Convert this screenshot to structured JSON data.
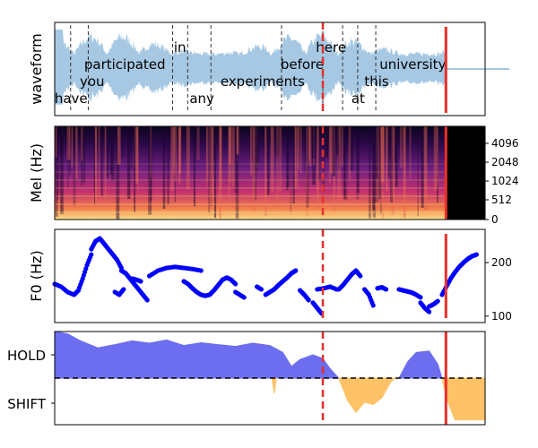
{
  "colors": {
    "waveform": "#a6c8e3",
    "f0": "#0000ff",
    "hold": "#6d6df0",
    "shift": "#ffc266",
    "vad_red": "#e8302a",
    "dashed": "#333333"
  },
  "chart_data": [
    {
      "type": "area",
      "panel": "waveform",
      "ylabel": "waveform",
      "xlim": [
        0,
        1
      ],
      "words": [
        {
          "text": "have",
          "x": 0.038,
          "level": "low"
        },
        {
          "text": "you",
          "x": 0.087,
          "level": "mid"
        },
        {
          "text": "participated",
          "x": 0.163,
          "level": "high"
        },
        {
          "text": "in",
          "x": 0.291,
          "level": "top"
        },
        {
          "text": "any",
          "x": 0.342,
          "level": "low"
        },
        {
          "text": "experiments",
          "x": 0.483,
          "level": "mid"
        },
        {
          "text": "before",
          "x": 0.575,
          "level": "high"
        },
        {
          "text": "here",
          "x": 0.642,
          "level": "top"
        },
        {
          "text": "at",
          "x": 0.705,
          "level": "low"
        },
        {
          "text": "this",
          "x": 0.748,
          "level": "mid"
        },
        {
          "text": "university",
          "x": 0.832,
          "level": "high"
        }
      ],
      "word_boundaries": [
        0.037,
        0.078,
        0.274,
        0.309,
        0.363,
        0.527,
        0.623,
        0.669,
        0.704,
        0.746
      ],
      "vad_dashed_x": 0.623,
      "vad_solid_x": 0.909,
      "signal_end_x": 0.909
    },
    {
      "type": "heatmap",
      "panel": "mel",
      "ylabel": "Mel (Hz)",
      "yticks": [
        "0",
        "512",
        "1024",
        "2048",
        "4096"
      ],
      "vad_dashed_x": 0.623,
      "vad_solid_x": 0.909
    },
    {
      "type": "scatter",
      "panel": "f0",
      "ylabel": "F0 (Hz)",
      "ylim": [
        88,
        262
      ],
      "yticks": [
        "100",
        "200"
      ],
      "segments": [
        {
          "x": [
            0.0,
            0.015,
            0.03,
            0.045,
            0.055,
            0.065,
            0.075,
            0.085
          ],
          "y": [
            160,
            155,
            145,
            140,
            148,
            170,
            195,
            215
          ]
        },
        {
          "x": [
            0.085,
            0.095,
            0.105,
            0.115,
            0.125,
            0.135,
            0.145,
            0.155
          ],
          "y": [
            225,
            240,
            245,
            235,
            225,
            215,
            205,
            190
          ]
        },
        {
          "x": [
            0.155,
            0.165,
            0.175,
            0.185,
            0.195,
            0.205,
            0.215
          ],
          "y": [
            185,
            180,
            170,
            160,
            150,
            140,
            130
          ]
        },
        {
          "x": [
            0.14,
            0.15,
            0.16
          ],
          "y": [
            145,
            140,
            150
          ]
        },
        {
          "x": [
            0.18,
            0.19,
            0.2
          ],
          "y": [
            170,
            168,
            165
          ]
        },
        {
          "x": [
            0.22,
            0.24,
            0.26,
            0.28,
            0.3,
            0.32,
            0.34
          ],
          "y": [
            175,
            185,
            190,
            192,
            190,
            188,
            185
          ]
        },
        {
          "x": [
            0.3,
            0.31,
            0.32,
            0.33,
            0.34,
            0.35,
            0.36,
            0.37,
            0.38,
            0.39,
            0.4,
            0.41,
            0.42
          ],
          "y": [
            165,
            160,
            152,
            145,
            140,
            138,
            140,
            148,
            158,
            168,
            172,
            168,
            160
          ]
        },
        {
          "x": [
            0.42,
            0.43,
            0.44
          ],
          "y": [
            145,
            140,
            135
          ]
        },
        {
          "x": [
            0.47,
            0.48
          ],
          "y": [
            155,
            150
          ]
        },
        {
          "x": [
            0.49,
            0.5,
            0.51,
            0.52,
            0.53,
            0.54,
            0.55,
            0.56
          ],
          "y": [
            140,
            145,
            150,
            158,
            165,
            172,
            180,
            185
          ]
        },
        {
          "x": [
            0.57,
            0.58,
            0.59
          ],
          "y": [
            148,
            140,
            130
          ]
        },
        {
          "x": [
            0.6,
            0.61,
            0.62
          ],
          "y": [
            125,
            115,
            105
          ]
        },
        {
          "x": [
            0.61,
            0.625,
            0.64,
            0.655
          ],
          "y": [
            150,
            152,
            155,
            150
          ]
        },
        {
          "x": [
            0.66,
            0.67,
            0.68,
            0.69,
            0.7,
            0.71
          ],
          "y": [
            150,
            158,
            168,
            178,
            185,
            175
          ]
        },
        {
          "x": [
            0.72,
            0.73,
            0.74
          ],
          "y": [
            150,
            140,
            120
          ]
        },
        {
          "x": [
            0.75,
            0.76,
            0.77
          ],
          "y": [
            152,
            154,
            150
          ]
        },
        {
          "x": [
            0.8,
            0.81,
            0.82,
            0.83,
            0.84,
            0.85
          ],
          "y": [
            150,
            148,
            146,
            144,
            140,
            135
          ]
        },
        {
          "x": [
            0.85,
            0.86,
            0.87
          ],
          "y": [
            125,
            115,
            108
          ]
        },
        {
          "x": [
            0.87,
            0.88,
            0.89
          ],
          "y": [
            118,
            122,
            128
          ]
        },
        {
          "x": [
            0.9,
            0.91,
            0.92,
            0.93,
            0.94,
            0.95,
            0.96,
            0.97,
            0.98
          ],
          "y": [
            140,
            155,
            170,
            182,
            192,
            200,
            207,
            212,
            215
          ]
        }
      ],
      "vad_dashed_x": 0.623,
      "vad_solid_x": 0.909
    },
    {
      "type": "area",
      "panel": "turn",
      "yticks": [
        "HOLD",
        "SHIFT"
      ],
      "ylim": [
        -1,
        1
      ],
      "hold_points": [
        [
          0.0,
          1.0
        ],
        [
          0.03,
          0.95
        ],
        [
          0.06,
          0.8
        ],
        [
          0.1,
          0.65
        ],
        [
          0.14,
          0.72
        ],
        [
          0.18,
          0.8
        ],
        [
          0.22,
          0.75
        ],
        [
          0.26,
          0.82
        ],
        [
          0.3,
          0.7
        ],
        [
          0.34,
          0.76
        ],
        [
          0.38,
          0.72
        ],
        [
          0.42,
          0.68
        ],
        [
          0.46,
          0.75
        ],
        [
          0.5,
          0.7
        ],
        [
          0.53,
          0.55
        ],
        [
          0.55,
          0.25
        ],
        [
          0.57,
          0.4
        ],
        [
          0.6,
          0.5
        ],
        [
          0.623,
          0.42
        ],
        [
          0.64,
          0.2
        ],
        [
          0.66,
          0.0
        ]
      ],
      "hold_bump": [
        [
          0.8,
          0.0
        ],
        [
          0.82,
          0.35
        ],
        [
          0.84,
          0.55
        ],
        [
          0.87,
          0.58
        ],
        [
          0.89,
          0.3
        ],
        [
          0.9,
          0.0
        ]
      ],
      "shift_points": [
        [
          0.66,
          0.0
        ],
        [
          0.68,
          -0.5
        ],
        [
          0.7,
          -0.78
        ],
        [
          0.72,
          -0.55
        ],
        [
          0.74,
          -0.6
        ],
        [
          0.76,
          -0.45
        ],
        [
          0.78,
          -0.1
        ],
        [
          0.79,
          0.0
        ]
      ],
      "shift_blip": [
        [
          0.505,
          0.0
        ],
        [
          0.51,
          -0.35
        ],
        [
          0.515,
          0.0
        ]
      ],
      "shift_end": [
        [
          0.9,
          0.0
        ],
        [
          0.91,
          -0.45
        ],
        [
          0.93,
          -0.95
        ],
        [
          0.96,
          -0.95
        ],
        [
          0.99,
          -0.95
        ],
        [
          1.0,
          -0.95
        ],
        [
          1.0,
          0.0
        ]
      ],
      "threshold": 0.0,
      "vad_dashed_x": 0.623,
      "vad_solid_x": 0.909
    }
  ]
}
